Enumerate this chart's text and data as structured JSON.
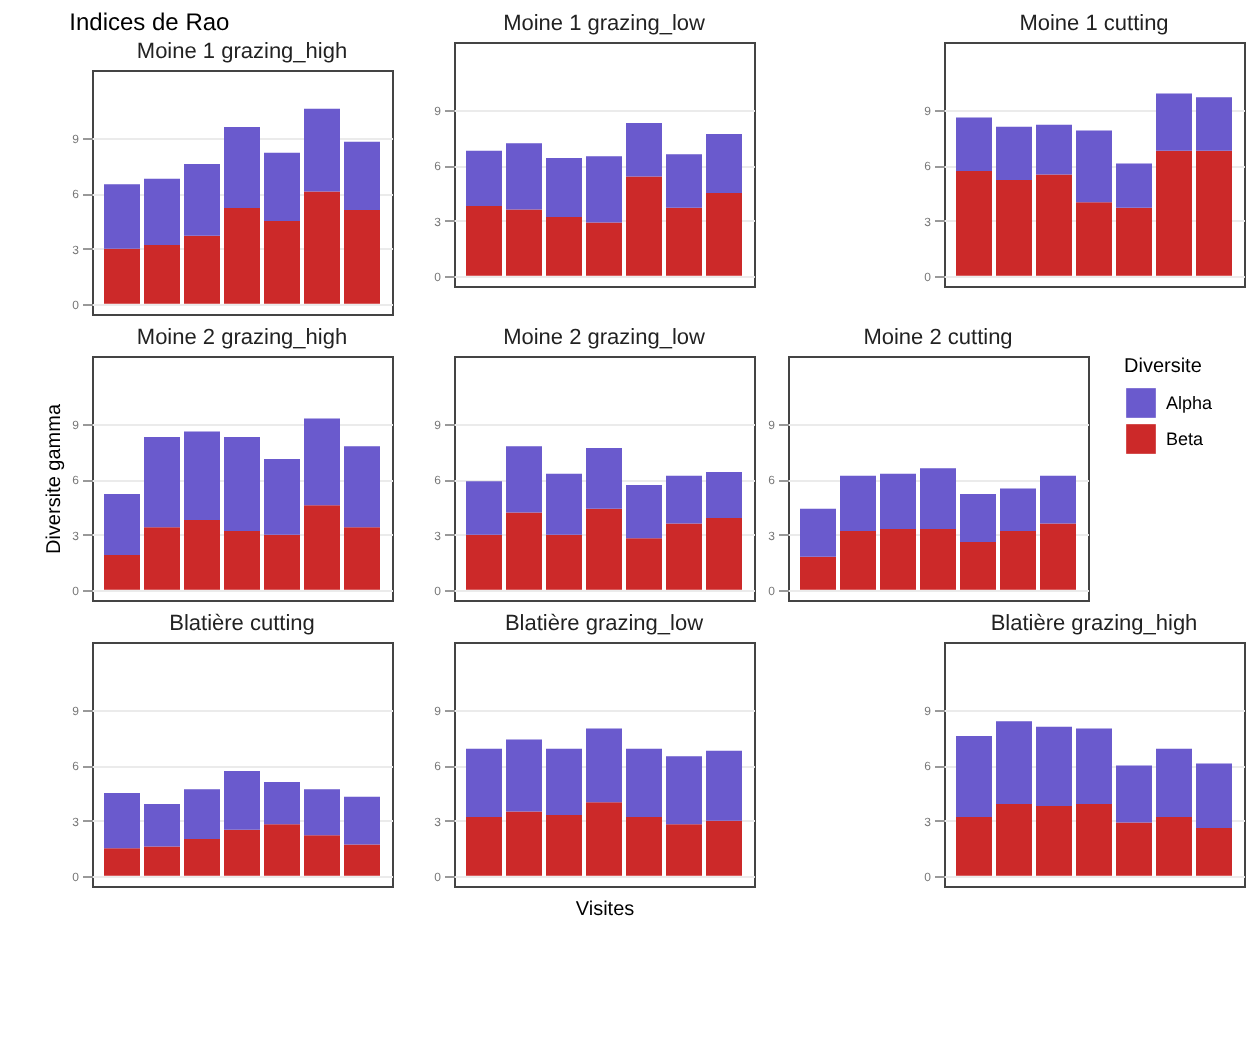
{
  "chart_data": [
    {
      "type": "bar",
      "title": "Moine 1 grazing_high",
      "annotations": [
        "Indices de Rao"
      ],
      "categories": [
        null,
        null,
        null,
        null,
        null,
        null,
        null
      ],
      "stacked": true,
      "ylim": [
        -0.55,
        12.7
      ],
      "yticks": [
        0,
        3,
        6,
        9
      ],
      "grid": "y",
      "series": [
        {
          "color": "#cc2929",
          "values": [
            3.0,
            3.2,
            3.7,
            5.2,
            4.5,
            6.1,
            5.1
          ]
        },
        {
          "color": "#6a5acd",
          "values": [
            3.5,
            3.6,
            3.9,
            4.4,
            3.7,
            4.5,
            3.7
          ]
        }
      ]
    },
    {
      "type": "bar",
      "title": "Moine 1 grazing_low",
      "categories": [
        null,
        null,
        null,
        null,
        null,
        null,
        null
      ],
      "stacked": true,
      "ylim": [
        -0.55,
        12.7
      ],
      "yticks": [
        0,
        3,
        6,
        9
      ],
      "grid": "y",
      "series": [
        {
          "color": "#cc2929",
          "values": [
            3.8,
            3.6,
            3.2,
            2.9,
            5.4,
            3.7,
            4.5
          ]
        },
        {
          "color": "#6a5acd",
          "values": [
            3.0,
            3.6,
            3.2,
            3.6,
            2.9,
            2.9,
            3.2
          ]
        }
      ]
    },
    {
      "type": "bar",
      "title": "Moine 1 cutting",
      "categories": [
        null,
        null,
        null,
        null,
        null,
        null,
        null
      ],
      "stacked": true,
      "ylim": [
        -0.55,
        12.7
      ],
      "yticks": [
        0,
        3,
        6,
        9
      ],
      "grid": "y",
      "series": [
        {
          "color": "#cc2929",
          "values": [
            5.7,
            5.2,
            5.5,
            4.0,
            3.7,
            6.8,
            6.8
          ]
        },
        {
          "color": "#6a5acd",
          "values": [
            2.9,
            2.9,
            2.7,
            3.9,
            2.4,
            3.1,
            2.9
          ]
        }
      ]
    },
    {
      "type": "bar",
      "title": "Moine 2 grazing_high",
      "ylabel": "Diversite gamma",
      "categories": [
        null,
        null,
        null,
        null,
        null,
        null,
        null
      ],
      "stacked": true,
      "ylim": [
        -0.55,
        12.7
      ],
      "yticks": [
        0,
        3,
        6,
        9
      ],
      "grid": "y",
      "series": [
        {
          "color": "#cc2929",
          "values": [
            1.9,
            3.4,
            3.8,
            3.2,
            3.0,
            4.6,
            3.4
          ]
        },
        {
          "color": "#6a5acd",
          "values": [
            3.3,
            4.9,
            4.8,
            5.1,
            4.1,
            4.7,
            4.4
          ]
        }
      ]
    },
    {
      "type": "bar",
      "title": "Moine 2 grazing_low",
      "categories": [
        null,
        null,
        null,
        null,
        null,
        null,
        null
      ],
      "stacked": true,
      "ylim": [
        -0.55,
        12.7
      ],
      "yticks": [
        0,
        3,
        6,
        9
      ],
      "grid": "y",
      "series": [
        {
          "color": "#cc2929",
          "values": [
            3.0,
            4.2,
            3.0,
            4.4,
            2.8,
            3.6,
            3.9
          ]
        },
        {
          "color": "#6a5acd",
          "values": [
            2.9,
            3.6,
            3.3,
            3.3,
            2.9,
            2.6,
            2.5
          ]
        }
      ]
    },
    {
      "type": "bar",
      "title": "Moine 2 cutting",
      "legend": "right",
      "legend_title": "Diversite",
      "categories": [
        null,
        null,
        null,
        null,
        null,
        null,
        null
      ],
      "stacked": true,
      "ylim": [
        -0.55,
        12.7
      ],
      "yticks": [
        0,
        3,
        6,
        9
      ],
      "grid": "y",
      "series": [
        {
          "name": "Beta",
          "color": "#cc2929",
          "values": [
            1.8,
            3.2,
            3.3,
            3.3,
            2.6,
            3.2,
            3.6
          ]
        },
        {
          "name": "Alpha",
          "color": "#6a5acd",
          "values": [
            2.6,
            3.0,
            3.0,
            3.3,
            2.6,
            2.3,
            2.6
          ]
        }
      ]
    },
    {
      "type": "bar",
      "title": "Blatière cutting",
      "categories": [
        null,
        null,
        null,
        null,
        null,
        null,
        null
      ],
      "stacked": true,
      "ylim": [
        -0.55,
        12.7
      ],
      "yticks": [
        0,
        3,
        6,
        9
      ],
      "grid": "y",
      "series": [
        {
          "color": "#cc2929",
          "values": [
            1.5,
            1.6,
            2.0,
            2.5,
            2.8,
            2.2,
            1.7
          ]
        },
        {
          "color": "#6a5acd",
          "values": [
            3.0,
            2.3,
            2.7,
            3.2,
            2.3,
            2.5,
            2.6
          ]
        }
      ]
    },
    {
      "type": "bar",
      "title": "Blatière grazing_low",
      "xlabel": "Visites",
      "categories": [
        null,
        null,
        null,
        null,
        null,
        null,
        null
      ],
      "stacked": true,
      "ylim": [
        -0.55,
        12.7
      ],
      "yticks": [
        0,
        3,
        6,
        9
      ],
      "grid": "y",
      "series": [
        {
          "color": "#cc2929",
          "values": [
            3.2,
            3.5,
            3.3,
            4.0,
            3.2,
            2.8,
            3.0
          ]
        },
        {
          "color": "#6a5acd",
          "values": [
            3.7,
            3.9,
            3.6,
            4.0,
            3.7,
            3.7,
            3.8
          ]
        }
      ]
    },
    {
      "type": "bar",
      "title": "Blatière grazing_high",
      "categories": [
        null,
        null,
        null,
        null,
        null,
        null,
        null
      ],
      "stacked": true,
      "ylim": [
        -0.55,
        12.7
      ],
      "yticks": [
        0,
        3,
        6,
        9
      ],
      "grid": "y",
      "series": [
        {
          "color": "#cc2929",
          "values": [
            3.2,
            3.9,
            3.8,
            3.9,
            2.9,
            3.2,
            2.6
          ]
        },
        {
          "color": "#6a5acd",
          "values": [
            4.4,
            4.5,
            4.3,
            4.1,
            3.1,
            3.7,
            3.5
          ]
        }
      ]
    }
  ]
}
